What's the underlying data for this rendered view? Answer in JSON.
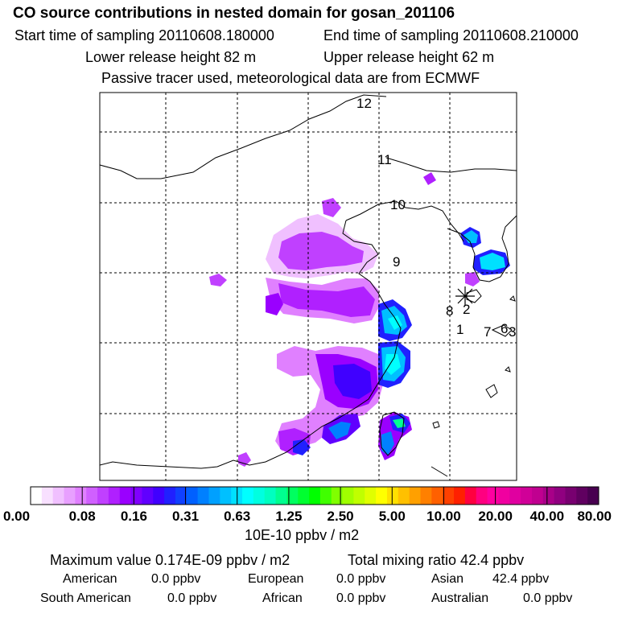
{
  "header": {
    "title": "CO  source contributions in nested domain for gosan_201106",
    "start_label": "Start time of sampling 20110608.180000",
    "end_label": "End time of sampling 20110608.210000",
    "lower_label": "Lower release height   82 m",
    "upper_label": "Upper release height   62 m",
    "info": "Passive tracer used, meteorological data are from ECMWF"
  },
  "map": {
    "trajectory_labels": [
      "12",
      "11",
      "10",
      "9",
      "8",
      "2",
      "1",
      "7",
      "6",
      "3"
    ],
    "receptor_marker": "asterisk"
  },
  "colorbar": {
    "tick_labels": [
      "0.00",
      "0.08",
      "0.16",
      "0.31",
      "0.63",
      "1.25",
      "2.50",
      "5.00",
      "10.00",
      "20.00",
      "40.00",
      "80.00"
    ],
    "units": "10E-10 ppbv / m2",
    "colors": [
      "#ffffff",
      "#f8e0ff",
      "#f0c0ff",
      "#e8a0ff",
      "#e080ff",
      "#d060ff",
      "#c040ff",
      "#b020ff",
      "#9a00ff",
      "#8000ff",
      "#6000ff",
      "#4000ff",
      "#2020ff",
      "#1040ff",
      "#0060ff",
      "#0080ff",
      "#00a0ff",
      "#00c0ff",
      "#00e0ff",
      "#00ffff",
      "#00ffe0",
      "#00ffc0",
      "#00ff90",
      "#00ff60",
      "#00ff30",
      "#00ff00",
      "#40ff00",
      "#80ff00",
      "#a0ff00",
      "#c0ff00",
      "#e0ff00",
      "#ffff00",
      "#ffe000",
      "#ffc000",
      "#ffa000",
      "#ff8000",
      "#ff6000",
      "#ff4000",
      "#ff2000",
      "#ff0040",
      "#ff0080",
      "#ff00a0",
      "#f000a0",
      "#e000a0",
      "#d00098",
      "#c00090",
      "#a80088",
      "#900080",
      "#780070",
      "#600060",
      "#480050"
    ]
  },
  "summary": {
    "max_value": "Maximum value  0.174E-09 ppbv / m2",
    "total_mixing": "Total mixing ratio       42.4 ppbv",
    "american_label": "American",
    "american_value": "0.0 ppbv",
    "european_label": "European",
    "european_value": "0.0 ppbv",
    "asian_label": "Asian",
    "asian_value": "42.4 ppbv",
    "south_american_label": "South American",
    "south_american_value": "0.0 ppbv",
    "african_label": "African",
    "african_value": "0.0 ppbv",
    "australian_label": "Australian",
    "australian_value": "0.0 ppbv"
  }
}
